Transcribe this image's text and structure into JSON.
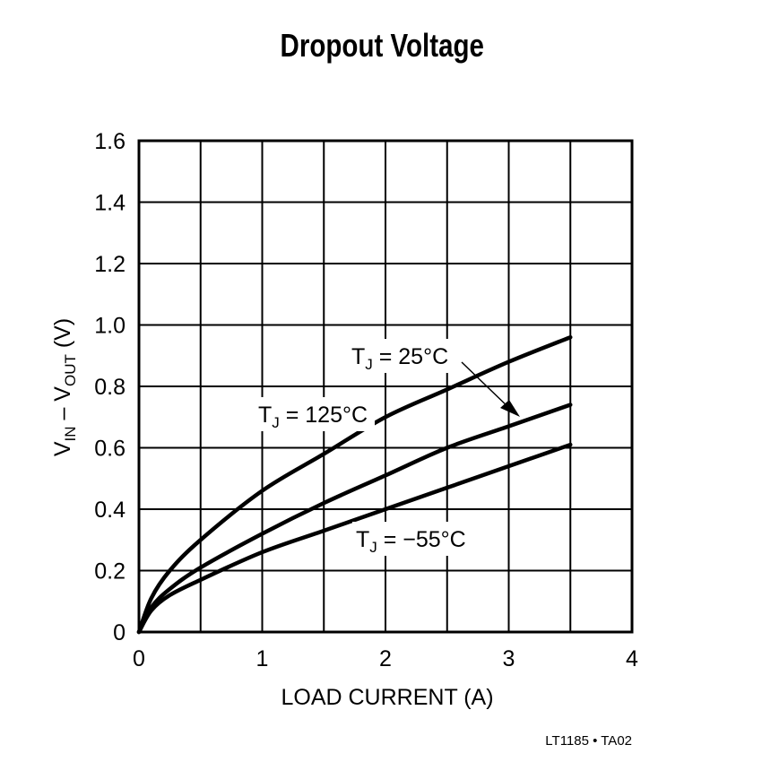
{
  "chart_data": {
    "type": "line",
    "title": "Dropout Voltage",
    "xlabel": "LOAD CURRENT (A)",
    "ylabel": "VIN – VOUT (V)",
    "ylabel_parts": {
      "v1": "V",
      "s1": "IN",
      "mid": " – V",
      "s2": "OUT",
      "end": " (V)"
    },
    "xlim": [
      0,
      4
    ],
    "ylim": [
      0,
      1.6
    ],
    "x_ticks": [
      "0",
      "1",
      "2",
      "3",
      "4"
    ],
    "y_ticks": [
      "0",
      "0.2",
      "0.4",
      "0.6",
      "0.8",
      "1.0",
      "1.2",
      "1.4",
      "1.6"
    ],
    "grid": true,
    "grid_x_step": 0.5,
    "grid_y_step": 0.2,
    "series": [
      {
        "name": "TJ = 125°C",
        "x": [
          0,
          0.1,
          0.25,
          0.5,
          1,
          1.5,
          2,
          2.5,
          3,
          3.5
        ],
        "values": [
          0,
          0.11,
          0.2,
          0.3,
          0.46,
          0.58,
          0.7,
          0.79,
          0.88,
          0.96
        ]
      },
      {
        "name": "TJ = 25°C",
        "x": [
          0,
          0.1,
          0.25,
          0.5,
          1,
          1.5,
          2,
          2.5,
          3,
          3.5
        ],
        "values": [
          0,
          0.08,
          0.14,
          0.21,
          0.32,
          0.42,
          0.51,
          0.6,
          0.67,
          0.74
        ]
      },
      {
        "name": "TJ = −55°C",
        "x": [
          0,
          0.1,
          0.25,
          0.5,
          1,
          1.5,
          2,
          2.5,
          3,
          3.5
        ],
        "values": [
          0,
          0.07,
          0.12,
          0.17,
          0.26,
          0.33,
          0.4,
          0.47,
          0.54,
          0.61
        ]
      }
    ],
    "annotations": [
      {
        "label_main": "T",
        "label_sub": "J",
        "label_rest": " = 125°C",
        "target_series": "TJ = 125°C"
      },
      {
        "label_main": "T",
        "label_sub": "J",
        "label_rest": " = 25°C",
        "target_series": "TJ = 25°C",
        "arrow": true
      },
      {
        "label_main": "T",
        "label_sub": "J",
        "label_rest": " = −55°C",
        "target_series": "TJ = −55°C"
      }
    ],
    "figure_code": "LT1185 • TA02"
  }
}
